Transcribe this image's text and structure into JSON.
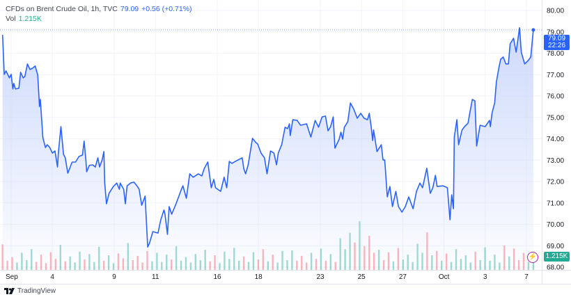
{
  "legend": {
    "symbol": "CFDs on Brent Crude Oil, 1h, TVC",
    "last": "79.09",
    "change": "+0.56 (+0.71%)",
    "vol_label": "Vol",
    "vol_value": "1.215K"
  },
  "price_tag": {
    "price": "79.09",
    "countdown": "22:26"
  },
  "volume_tag": "1.215K",
  "branding": "TradingView",
  "colors": {
    "line": "#2962ff",
    "area_top": "#c9d6fb",
    "volume_up": "#22ab94",
    "volume_down": "#f7525f",
    "price_tag": "#2962ff",
    "volume_tag": "#22ab94",
    "bolt": "#9c27b0"
  },
  "icons": {
    "lightning": "lightning-icon",
    "logo": "tradingview-logo"
  },
  "chart_data": {
    "type": "area",
    "title": "CFDs on Brent Crude Oil, 1h, TVC",
    "ylim": [
      68,
      80
    ],
    "y_ticks": [
      "80.00",
      "79.00",
      "78.00",
      "77.00",
      "76.00",
      "75.00",
      "74.00",
      "73.00",
      "72.00",
      "71.00",
      "70.00",
      "69.00",
      "68.00"
    ],
    "x_ticks": [
      {
        "label": "Sep",
        "date": "Sep 2"
      },
      {
        "label": "4",
        "date": "Sep 4"
      },
      {
        "label": "9",
        "date": "Sep 9"
      },
      {
        "label": "11",
        "date": "Sep 11"
      },
      {
        "label": "16",
        "date": "Sep 16"
      },
      {
        "label": "18",
        "date": "Sep 18"
      },
      {
        "label": "23",
        "date": "Sep 23"
      },
      {
        "label": "25",
        "date": "Sep 25"
      },
      {
        "label": "27",
        "date": "Sep 27"
      },
      {
        "label": "Oct",
        "date": "Oct 1"
      },
      {
        "label": "3",
        "date": "Oct 3"
      },
      {
        "label": "7",
        "date": "Oct 7"
      }
    ],
    "grid": true,
    "last_price": 79.09,
    "series": [
      {
        "points": [
          [
            "Aug 30 14:00",
            78.86
          ],
          [
            "Aug 30 16:00",
            77.01
          ],
          [
            "Aug 30 18:00",
            77.17
          ],
          [
            "Aug 30 22:00",
            76.85
          ],
          [
            "Sep 2 00:00",
            77.01
          ],
          [
            "Sep 2 02:00",
            76.33
          ],
          [
            "Sep 2 03:00",
            76.59
          ],
          [
            "Sep 2 05:00",
            76.33
          ],
          [
            "Sep 2 09:00",
            76.36
          ],
          [
            "Sep 2 11:00",
            77.11
          ],
          [
            "Sep 2 14:00",
            76.85
          ],
          [
            "Sep 2 16:00",
            76.91
          ],
          [
            "Sep 2 19:00",
            77.5
          ],
          [
            "Sep 2 22:00",
            77.24
          ],
          [
            "Sep 3 01:00",
            77.3
          ],
          [
            "Sep 3 04:00",
            77.4
          ],
          [
            "Sep 3 07:00",
            76.98
          ],
          [
            "Sep 3 09:00",
            75.51
          ],
          [
            "Sep 3 10:00",
            75.84
          ],
          [
            "Sep 3 13:00",
            74.05
          ],
          [
            "Sep 3 16:00",
            73.59
          ],
          [
            "Sep 3 18:00",
            73.72
          ],
          [
            "Sep 3 21:00",
            73.59
          ],
          [
            "Sep 4 00:00",
            73.33
          ],
          [
            "Sep 4 03:00",
            73.43
          ],
          [
            "Sep 4 06:00",
            72.68
          ],
          [
            "Sep 4 07:00",
            73.33
          ],
          [
            "Sep 4 10:00",
            74.57
          ],
          [
            "Sep 4 13:00",
            73.27
          ],
          [
            "Sep 4 15:00",
            73.11
          ],
          [
            "Sep 4 18:00",
            72.39
          ],
          [
            "Sep 4 23:00",
            72.91
          ],
          [
            "Sep 5 03:00",
            72.91
          ],
          [
            "Sep 5 07:00",
            73.17
          ],
          [
            "Sep 5 11:00",
            73.24
          ],
          [
            "Sep 5 13:00",
            73.89
          ],
          [
            "Sep 5 15:00",
            73.01
          ],
          [
            "Sep 5 16:00",
            72.46
          ],
          [
            "Sep 5 19:00",
            72.75
          ],
          [
            "Sep 5 23:00",
            72.78
          ],
          [
            "Sep 6 02:00",
            72.68
          ],
          [
            "Sep 6 05:00",
            73.11
          ],
          [
            "Sep 6 07:00",
            72.68
          ],
          [
            "Sep 6 10:00",
            73.01
          ],
          [
            "Sep 6 12:00",
            73.4
          ],
          [
            "Sep 6 13:00",
            71.93
          ],
          [
            "Sep 6 15:00",
            70.96
          ],
          [
            "Sep 6 18:00",
            71.45
          ],
          [
            "Sep 6 23:00",
            71.77
          ],
          [
            "Sep 9 03:00",
            71.93
          ],
          [
            "Sep 9 06:00",
            71.64
          ],
          [
            "Sep 9 07:00",
            71.93
          ],
          [
            "Sep 9 11:00",
            71.64
          ],
          [
            "Sep 9 13:00",
            70.96
          ],
          [
            "Sep 9 15:00",
            71.8
          ],
          [
            "Sep 9 19:00",
            71.93
          ],
          [
            "Sep 9 23:00",
            71.97
          ],
          [
            "Sep 10 03:00",
            71.77
          ],
          [
            "Sep 10 05:00",
            71.64
          ],
          [
            "Sep 10 08:00",
            70.89
          ],
          [
            "Sep 10 12:00",
            71.32
          ],
          [
            "Sep 10 15:00",
            68.94
          ],
          [
            "Sep 10 17:00",
            69.11
          ],
          [
            "Sep 10 21:00",
            69.66
          ],
          [
            "Sep 11 03:00",
            69.59
          ],
          [
            "Sep 11 06:00",
            70.18
          ],
          [
            "Sep 11 10:00",
            70.67
          ],
          [
            "Sep 11 11:00",
            70.5
          ],
          [
            "Sep 11 14:00",
            69.53
          ],
          [
            "Sep 11 16:00",
            70.83
          ],
          [
            "Sep 11 19:00",
            70.47
          ],
          [
            "Sep 12 00:00",
            70.96
          ],
          [
            "Sep 12 06:00",
            71.61
          ],
          [
            "Sep 12 08:00",
            71.8
          ],
          [
            "Sep 12 12:00",
            71.22
          ],
          [
            "Sep 12 16:00",
            72.36
          ],
          [
            "Sep 12 20:00",
            72.2
          ],
          [
            "Sep 13 02:00",
            72.36
          ],
          [
            "Sep 13 06:00",
            72.26
          ],
          [
            "Sep 13 09:00",
            72.62
          ],
          [
            "Sep 13 13:00",
            72.91
          ],
          [
            "Sep 13 17:00",
            71.71
          ],
          [
            "Sep 13 20:00",
            72.1
          ],
          [
            "Sep 13 22:00",
            71.71
          ],
          [
            "Sep 16 04:00",
            71.54
          ],
          [
            "Sep 16 08:00",
            72.2
          ],
          [
            "Sep 16 11:00",
            71.71
          ],
          [
            "Sep 16 14:00",
            72.94
          ],
          [
            "Sep 16 17:00",
            72.85
          ],
          [
            "Sep 16 21:00",
            72.94
          ],
          [
            "Sep 17 05:00",
            73.11
          ],
          [
            "Sep 17 07:00",
            72.59
          ],
          [
            "Sep 17 09:00",
            72.36
          ],
          [
            "Sep 17 12:00",
            72.78
          ],
          [
            "Sep 17 17:00",
            74.02
          ],
          [
            "Sep 17 21:00",
            73.82
          ],
          [
            "Sep 17 23:00",
            73.76
          ],
          [
            "Sep 18 03:00",
            73.33
          ],
          [
            "Sep 18 07:00",
            73.11
          ],
          [
            "Sep 18 10:00",
            72.36
          ],
          [
            "Sep 18 14:00",
            73.43
          ],
          [
            "Sep 18 18:00",
            73.33
          ],
          [
            "Sep 18 21:00",
            72.78
          ],
          [
            "Sep 18 23:00",
            73.33
          ],
          [
            "Sep 19 03:00",
            73.72
          ],
          [
            "Sep 19 07:00",
            74.54
          ],
          [
            "Sep 19 10:00",
            74.47
          ],
          [
            "Sep 19 12:00",
            74.7
          ],
          [
            "Sep 19 13:00",
            74.15
          ],
          [
            "Sep 19 16:00",
            74.89
          ],
          [
            "Sep 19 21:00",
            74.86
          ],
          [
            "Sep 20 01:00",
            74.63
          ],
          [
            "Sep 20 08:00",
            74.7
          ],
          [
            "Sep 20 13:00",
            74.08
          ],
          [
            "Sep 20 18:00",
            74.86
          ],
          [
            "Sep 20 22:00",
            74.54
          ],
          [
            "Sep 23 02:00",
            75.02
          ],
          [
            "Sep 23 06:00",
            75.06
          ],
          [
            "Sep 23 09:00",
            74.37
          ],
          [
            "Sep 23 12:00",
            74.57
          ],
          [
            "Sep 23 15:00",
            75.02
          ],
          [
            "Sep 23 17:00",
            73.56
          ],
          [
            "Sep 23 22:00",
            73.98
          ],
          [
            "Sep 24 00:00",
            74.31
          ],
          [
            "Sep 24 02:00",
            73.98
          ],
          [
            "Sep 24 04:00",
            74.54
          ],
          [
            "Sep 24 08:00",
            74.8
          ],
          [
            "Sep 24 11:00",
            75.67
          ],
          [
            "Sep 24 15:00",
            75.38
          ],
          [
            "Sep 24 19:00",
            74.96
          ],
          [
            "Sep 24 23:00",
            75.19
          ],
          [
            "Sep 25 03:00",
            74.96
          ],
          [
            "Sep 25 07:00",
            74.89
          ],
          [
            "Sep 25 09:00",
            75.19
          ],
          [
            "Sep 25 11:00",
            74.63
          ],
          [
            "Sep 25 13:00",
            73.92
          ],
          [
            "Sep 25 14:00",
            74.41
          ],
          [
            "Sep 25 18:00",
            73.4
          ],
          [
            "Sep 25 23:00",
            73.72
          ],
          [
            "Sep 26 01:00",
            73.01
          ],
          [
            "Sep 26 03:00",
            73.01
          ],
          [
            "Sep 26 06:00",
            71.28
          ],
          [
            "Sep 26 09:00",
            71.77
          ],
          [
            "Sep 26 12:00",
            70.83
          ],
          [
            "Sep 26 16:00",
            71.54
          ],
          [
            "Sep 26 19:00",
            70.83
          ],
          [
            "Sep 26 23:00",
            70.57
          ],
          [
            "Sep 27 03:00",
            70.83
          ],
          [
            "Sep 27 07:00",
            71.28
          ],
          [
            "Sep 27 12:00",
            70.73
          ],
          [
            "Sep 27 16:00",
            71.54
          ],
          [
            "Sep 27 20:00",
            71.93
          ],
          [
            "Sep 27 23:00",
            71.71
          ],
          [
            "Sep 30 04:00",
            72.62
          ],
          [
            "Sep 30 08:00",
            71.45
          ],
          [
            "Sep 30 11:00",
            71.71
          ],
          [
            "Sep 30 14:00",
            72.29
          ],
          [
            "Sep 30 16:00",
            71.77
          ],
          [
            "Sep 30 23:00",
            71.8
          ],
          [
            "Oct 1 04:00",
            71.71
          ],
          [
            "Oct 1 07:00",
            70.21
          ],
          [
            "Oct 1 09:00",
            71.38
          ],
          [
            "Oct 1 11:00",
            70.73
          ],
          [
            "Oct 1 12:00",
            74.08
          ],
          [
            "Oct 1 15:00",
            74.89
          ],
          [
            "Oct 1 17:00",
            73.72
          ],
          [
            "Oct 1 21:00",
            74.41
          ],
          [
            "Oct 2 00:00",
            74.57
          ],
          [
            "Oct 2 04:00",
            74.73
          ],
          [
            "Oct 2 06:00",
            75.19
          ],
          [
            "Oct 2 09:00",
            75.84
          ],
          [
            "Oct 2 12:00",
            75.77
          ],
          [
            "Oct 2 14:00",
            73.66
          ],
          [
            "Oct 2 18:00",
            74.63
          ],
          [
            "Oct 3 00:00",
            74.57
          ],
          [
            "Oct 3 05:00",
            74.86
          ],
          [
            "Oct 3 06:00",
            74.57
          ],
          [
            "Oct 3 08:00",
            75.22
          ],
          [
            "Oct 3 11:00",
            75.67
          ],
          [
            "Oct 3 13:00",
            76.65
          ],
          [
            "Oct 3 16:00",
            77.33
          ],
          [
            "Oct 3 18:00",
            77.72
          ],
          [
            "Oct 3 21:00",
            77.82
          ],
          [
            "Oct 4 00:00",
            77.5
          ],
          [
            "Oct 4 03:00",
            77.5
          ],
          [
            "Oct 4 05:00",
            78.44
          ],
          [
            "Oct 4 09:00",
            78.7
          ],
          [
            "Oct 4 12:00",
            78.05
          ],
          [
            "Oct 4 16:00",
            79.19
          ],
          [
            "Oct 4 18:00",
            78.05
          ],
          [
            "Oct 4 22:00",
            77.5
          ],
          [
            "Oct 7 02:00",
            77.66
          ],
          [
            "Oct 7 05:00",
            77.82
          ],
          [
            "Oct 7 08:00",
            79.09
          ]
        ]
      }
    ],
    "volume_k": [
      4.2,
      1.5,
      2.1,
      1.2,
      2.8,
      1.6,
      3.4,
      1.3,
      2.5,
      1.1,
      2.9,
      1.8,
      4.1,
      1.4,
      2.2,
      1.2,
      3.0,
      1.7,
      2.6,
      1.3,
      3.8,
      1.5,
      2.4,
      1.1,
      2.7,
      1.9,
      4.4,
      1.6,
      2.3,
      1.2,
      3.1,
      1.4,
      2.8,
      1.3,
      2.5,
      1.7,
      3.9,
      1.5,
      2.1,
      1.2,
      2.6,
      1.6,
      3.3,
      1.4,
      2.4,
      1.1,
      3.0,
      1.8,
      3.6,
      1.5,
      2.2,
      1.3,
      2.9,
      1.7,
      3.4,
      1.4,
      2.5,
      1.2,
      3.1,
      1.6,
      3.2,
      1.5,
      2.3,
      1.2,
      2.8,
      1.8,
      3.5,
      1.5,
      2.6,
      1.3,
      5.2,
      3.4,
      6.1,
      4.5,
      8.0,
      3.9,
      5.6,
      2.8,
      3.3,
      1.6,
      2.9,
      1.4,
      3.6,
      1.7,
      2.5,
      1.3,
      4.3,
      2.8,
      6.2,
      2.4,
      3.1,
      1.5,
      2.7,
      1.3,
      3.4,
      1.8,
      2.4,
      1.2,
      3.0,
      1.6,
      3.7,
      1.5,
      2.5,
      1.2,
      4.0,
      2.2,
      3.5,
      1.6,
      2.8,
      1.3,
      1.215
    ]
  }
}
